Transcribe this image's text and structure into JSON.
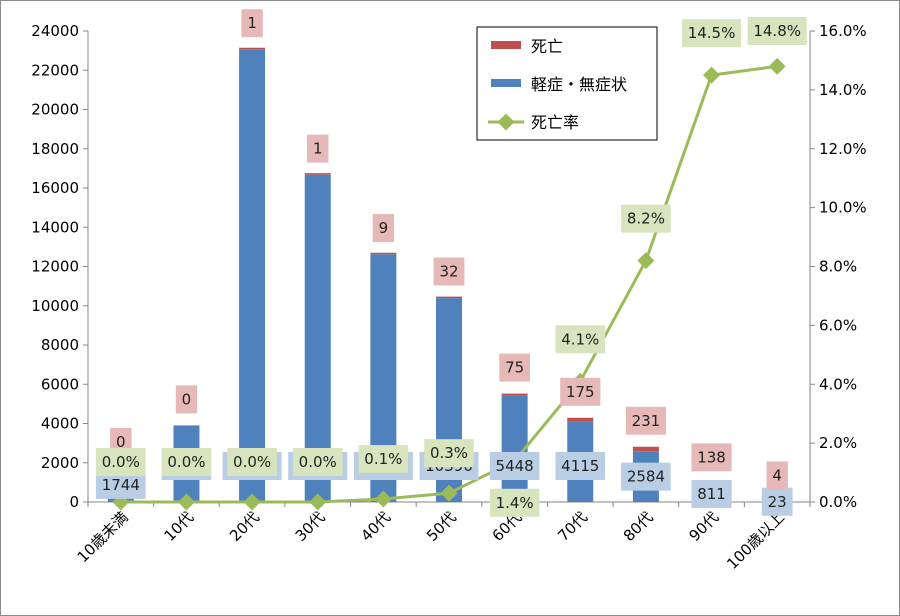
{
  "chart_data": {
    "type": "bar",
    "stacked": true,
    "secondary_axis": true,
    "categories": [
      "10歳未満",
      "10代",
      "20代",
      "30代",
      "40代",
      "50代",
      "60代",
      "70代",
      "80代",
      "90代",
      "100歳以上"
    ],
    "series": [
      {
        "name": "軽症・無症状",
        "type": "bar",
        "axis": "left",
        "color": "#4F81BD",
        "values": [
          1744,
          3903,
          23071,
          16680,
          12624,
          10390,
          5448,
          4115,
          2584,
          811,
          23
        ],
        "labels": [
          "1744",
          "3903",
          "23071",
          "16680",
          "12624",
          "10390",
          "5448",
          "4115",
          "2584",
          "811",
          "23"
        ]
      },
      {
        "name": "死亡",
        "type": "bar",
        "axis": "left",
        "color": "#C0504D",
        "values": [
          0,
          0,
          1,
          1,
          9,
          32,
          75,
          175,
          231,
          138,
          4
        ],
        "labels": [
          "0",
          "0",
          "1",
          "1",
          "9",
          "32",
          "75",
          "175",
          "231",
          "138",
          "4"
        ]
      },
      {
        "name": "死亡率",
        "type": "line",
        "axis": "right",
        "color": "#9BBB59",
        "values": [
          0.0,
          0.0,
          0.0,
          0.0,
          0.1,
          0.3,
          1.4,
          4.1,
          8.2,
          14.5,
          14.8
        ],
        "labels": [
          "0.0%",
          "0.0%",
          "0.0%",
          "0.0%",
          "0.1%",
          "0.3%",
          "1.4%",
          "4.1%",
          "8.2%",
          "14.5%",
          "14.8%"
        ]
      }
    ],
    "y_left": {
      "min": 0,
      "max": 24000,
      "step": 2000,
      "ticks": [
        "0",
        "2000",
        "4000",
        "6000",
        "8000",
        "10000",
        "12000",
        "14000",
        "16000",
        "18000",
        "20000",
        "22000",
        "24000"
      ]
    },
    "y_right": {
      "min": 0,
      "max": 16,
      "step": 2,
      "ticks": [
        "0.0%",
        "2.0%",
        "4.0%",
        "6.0%",
        "8.0%",
        "10.0%",
        "12.0%",
        "14.0%",
        "16.0%"
      ]
    },
    "grid": false,
    "legend_position": "top-right",
    "label_colors": {
      "bar_label_bg": "#B9CDE5",
      "death_label_bg": "#E6B9B8",
      "rate_label_bg": "#D7E4BD"
    }
  }
}
